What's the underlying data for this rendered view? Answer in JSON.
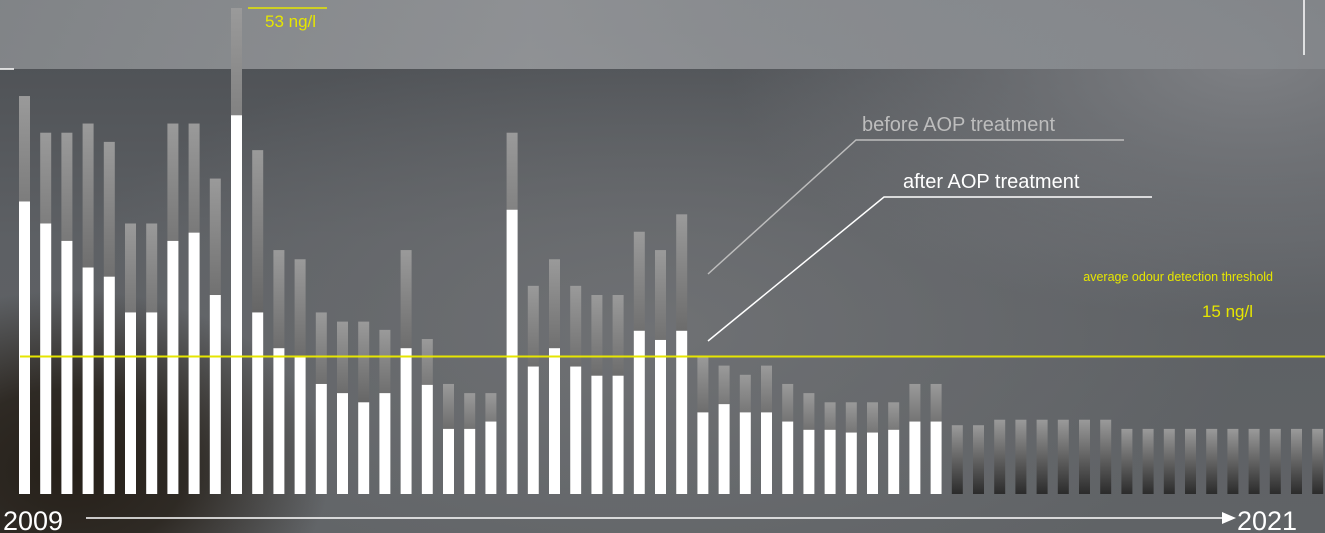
{
  "colors": {
    "after": "#ffffff",
    "before_top": "#9a9a9a",
    "before_bottom": "#2b2b2b",
    "threshold": "#e6e600",
    "annotation_yellow": "#e6e600",
    "axis": "#ffffff"
  },
  "annotations": {
    "max_value_label": "53 ng/l",
    "before_label": "before AOP treatment",
    "after_label": "after AOP treatment",
    "threshold_title": "average odour detection threshold",
    "threshold_value_label": "15 ng/l"
  },
  "chart_data": {
    "type": "bar",
    "xlabel": "",
    "ylabel": "",
    "x_start_label": "2009",
    "x_end_label": "2021",
    "unit": "ng/l",
    "ylim": [
      0,
      53
    ],
    "threshold": 15,
    "grid": false,
    "series": [
      {
        "name": "before AOP treatment",
        "values": [
          43.4,
          39.4,
          39.4,
          40.4,
          38.4,
          29.5,
          29.5,
          40.4,
          40.4,
          34.4,
          53.0,
          37.5,
          26.6,
          25.6,
          19.8,
          18.8,
          18.8,
          17.9,
          26.6,
          16.9,
          12.0,
          11.0,
          11.0,
          39.4,
          22.7,
          25.6,
          22.7,
          21.7,
          21.7,
          28.6,
          26.6,
          30.5,
          15.0,
          14.0,
          13.0,
          14.0,
          12.0,
          11.0,
          10.0,
          10.0,
          10.0,
          10.0,
          12.0,
          12.0,
          7.5,
          7.5,
          8.1,
          8.1,
          8.1,
          8.1,
          8.1,
          8.1,
          7.1,
          7.1,
          7.1,
          7.1,
          7.1,
          7.1,
          7.1,
          7.1,
          7.1,
          7.1
        ]
      },
      {
        "name": "after AOP treatment",
        "values": [
          31.9,
          29.5,
          27.6,
          24.7,
          23.7,
          19.8,
          19.8,
          27.6,
          28.5,
          21.7,
          41.3,
          19.8,
          15.9,
          14.9,
          12.0,
          11.0,
          10.0,
          11.0,
          15.9,
          11.9,
          7.1,
          7.1,
          7.9,
          31.0,
          13.9,
          15.9,
          13.9,
          12.9,
          12.9,
          17.8,
          16.8,
          17.8,
          8.9,
          9.8,
          8.9,
          8.9,
          7.9,
          7.0,
          7.0,
          6.7,
          6.7,
          7.0,
          7.9,
          7.9
        ]
      }
    ]
  }
}
